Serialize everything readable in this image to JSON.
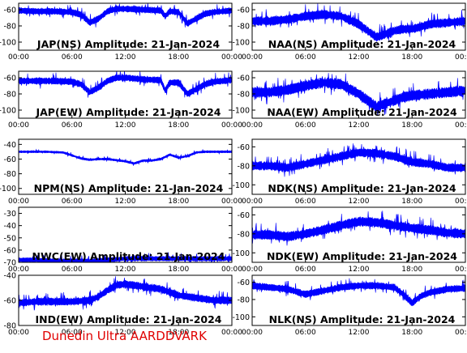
{
  "footer": "Dunedin Ultra AARDDVARK",
  "colors": {
    "trace": "#0000ff",
    "axis": "#000000",
    "footer": "#e00000"
  },
  "chart_data": [
    {
      "type": "line",
      "title": "JAP(NS) Amplitude: 21-Jan-2024",
      "x_ticks": [
        "00:00",
        "06:00",
        "12:00",
        "18:00",
        "00:00"
      ],
      "y_ticks": [
        -60,
        -80,
        -100
      ],
      "ylim": [
        -110,
        -52
      ],
      "series": [
        {
          "x": [
            0,
            2,
            4,
            6,
            7,
            8,
            9,
            10,
            11,
            12,
            14,
            16,
            16.5,
            17,
            18,
            19,
            20,
            21,
            22,
            24
          ],
          "y": [
            -61,
            -62,
            -62,
            -63,
            -66,
            -76,
            -71,
            -62,
            -59,
            -59,
            -60,
            -61,
            -68,
            -62,
            -63,
            -77,
            -71,
            -65,
            -63,
            -61
          ],
          "band": 8
        }
      ]
    },
    {
      "type": "line",
      "title": "NAA(NS) Amplitude: 21-Jan-2024",
      "x_ticks": [
        "00:00",
        "06:00",
        "12:00",
        "18:00",
        "00:00"
      ],
      "y_ticks": [
        -60,
        -80,
        -100
      ],
      "ylim": [
        -110,
        -52
      ],
      "series": [
        {
          "x": [
            0,
            2,
            4,
            6,
            8,
            10,
            12,
            13,
            14,
            15,
            16,
            17,
            18,
            20,
            22,
            24
          ],
          "y": [
            -74,
            -74,
            -72,
            -68,
            -66,
            -68,
            -78,
            -86,
            -94,
            -90,
            -86,
            -84,
            -84,
            -78,
            -76,
            -74
          ],
          "band": 11
        }
      ]
    },
    {
      "type": "line",
      "title": "JAP(EW) Amplitude: 21-Jan-2024",
      "x_ticks": [
        "00:00",
        "06:00",
        "12:00",
        "18:00",
        "00:00"
      ],
      "y_ticks": [
        -60,
        -80,
        -100
      ],
      "ylim": [
        -110,
        -52
      ],
      "series": [
        {
          "x": [
            0,
            2,
            4,
            6,
            7,
            8,
            9,
            10,
            11,
            12,
            14,
            16,
            16.5,
            17,
            18,
            19,
            20,
            21,
            22,
            24
          ],
          "y": [
            -64,
            -64,
            -64,
            -65,
            -68,
            -78,
            -72,
            -64,
            -60,
            -60,
            -62,
            -63,
            -76,
            -66,
            -66,
            -80,
            -74,
            -68,
            -65,
            -63
          ],
          "band": 8
        }
      ]
    },
    {
      "type": "line",
      "title": "NAA(EW) Amplitude: 21-Jan-2024",
      "x_ticks": [
        "00:00",
        "06:00",
        "12:00",
        "18:00",
        "00:00"
      ],
      "y_ticks": [
        -60,
        -80,
        -100
      ],
      "ylim": [
        -110,
        -52
      ],
      "series": [
        {
          "x": [
            0,
            2,
            4,
            6,
            8,
            10,
            12,
            13,
            14,
            15,
            16,
            17,
            18,
            20,
            22,
            24
          ],
          "y": [
            -78,
            -78,
            -75,
            -70,
            -66,
            -68,
            -80,
            -88,
            -96,
            -92,
            -88,
            -84,
            -82,
            -80,
            -78,
            -76
          ],
          "band": 13
        }
      ]
    },
    {
      "type": "line",
      "title": "NPM(NS) Amplitude: 21-Jan-2024",
      "x_ticks": [
        "00:00",
        "06:00",
        "12:00",
        "18:00",
        "00:00"
      ],
      "y_ticks": [
        -40,
        -60,
        -80,
        -100
      ],
      "ylim": [
        -108,
        -33
      ],
      "series": [
        {
          "x": [
            0,
            3,
            5,
            6,
            7,
            8,
            9,
            10,
            12,
            13,
            14,
            15,
            16,
            17,
            18,
            19,
            20,
            21,
            22,
            24
          ],
          "y": [
            -50,
            -50,
            -51,
            -55,
            -59,
            -61,
            -60,
            -60,
            -63,
            -66,
            -62,
            -62,
            -60,
            -54,
            -58,
            -56,
            -51,
            -50,
            -50,
            -50
          ],
          "band": 3
        }
      ]
    },
    {
      "type": "line",
      "title": "NDK(NS) Amplitude: 21-Jan-2024",
      "x_ticks": [
        "00:00",
        "06:00",
        "12:00",
        "18:00",
        "00:00"
      ],
      "y_ticks": [
        -60,
        -80,
        -100
      ],
      "ylim": [
        -110,
        -52
      ],
      "series": [
        {
          "x": [
            0,
            2,
            4,
            6,
            8,
            10,
            12,
            14,
            16,
            18,
            20,
            22,
            24
          ],
          "y": [
            -80,
            -80,
            -82,
            -78,
            -74,
            -70,
            -66,
            -67,
            -70,
            -76,
            -78,
            -82,
            -82
          ],
          "band": 9
        }
      ]
    },
    {
      "type": "line",
      "title": "NWC(EW) Amplitude: 21-Jan-2024",
      "x_ticks": [
        "00:00",
        "06:00",
        "12:00",
        "18:00",
        "00:00"
      ],
      "y_ticks": [
        -30,
        -40,
        -50,
        -60,
        -70
      ],
      "ylim": [
        -70,
        -25
      ],
      "series": [
        {
          "x": [
            0,
            2,
            4,
            6,
            8,
            10,
            12,
            14,
            16,
            18,
            20,
            22,
            24
          ],
          "y": [
            -68,
            -68,
            -69,
            -69,
            -69,
            -68,
            -67,
            -67,
            -67,
            -67,
            -67,
            -67,
            -67
          ],
          "band": 4
        }
      ]
    },
    {
      "type": "line",
      "title": "NDK(EW) Amplitude: 21-Jan-2024",
      "x_ticks": [
        "00:00",
        "06:00",
        "12:00",
        "18:00",
        "00:00"
      ],
      "y_ticks": [
        -60,
        -80,
        -100
      ],
      "ylim": [
        -110,
        -52
      ],
      "series": [
        {
          "x": [
            0,
            2,
            4,
            6,
            8,
            10,
            12,
            14,
            16,
            18,
            20,
            22,
            24
          ],
          "y": [
            -81,
            -81,
            -83,
            -80,
            -76,
            -71,
            -67,
            -68,
            -71,
            -74,
            -76,
            -79,
            -80
          ],
          "band": 10
        }
      ]
    },
    {
      "type": "line",
      "title": "IND(EW) Amplitude: 21-Jan-2024",
      "x_ticks": [
        "00:00",
        "06:00",
        "12:00",
        "18:00",
        "00:00"
      ],
      "y_ticks": [
        -40,
        -60,
        -80
      ],
      "ylim": [
        -80,
        -40
      ],
      "series": [
        {
          "x": [
            0,
            2,
            4,
            6,
            8,
            9,
            10,
            11,
            12,
            14,
            16,
            18,
            20,
            22,
            24
          ],
          "y": [
            -62,
            -61,
            -61,
            -61,
            -60,
            -57,
            -52,
            -48,
            -47,
            -49,
            -51,
            -56,
            -58,
            -60,
            -60
          ],
          "band": 6
        }
      ]
    },
    {
      "type": "line",
      "title": "NLK(NS) Amplitude: 21-Jan-2024",
      "x_ticks": [
        "00:00",
        "06:00",
        "12:00",
        "18:00",
        "00:00"
      ],
      "y_ticks": [
        -60,
        -80,
        -100
      ],
      "ylim": [
        -110,
        -52
      ],
      "series": [
        {
          "x": [
            0,
            2,
            4,
            6,
            8,
            10,
            12,
            14,
            16,
            17,
            18,
            19,
            20,
            22,
            24
          ],
          "y": [
            -64,
            -66,
            -68,
            -74,
            -70,
            -66,
            -64,
            -64,
            -66,
            -74,
            -84,
            -76,
            -72,
            -68,
            -67
          ],
          "band": 8
        }
      ]
    }
  ]
}
